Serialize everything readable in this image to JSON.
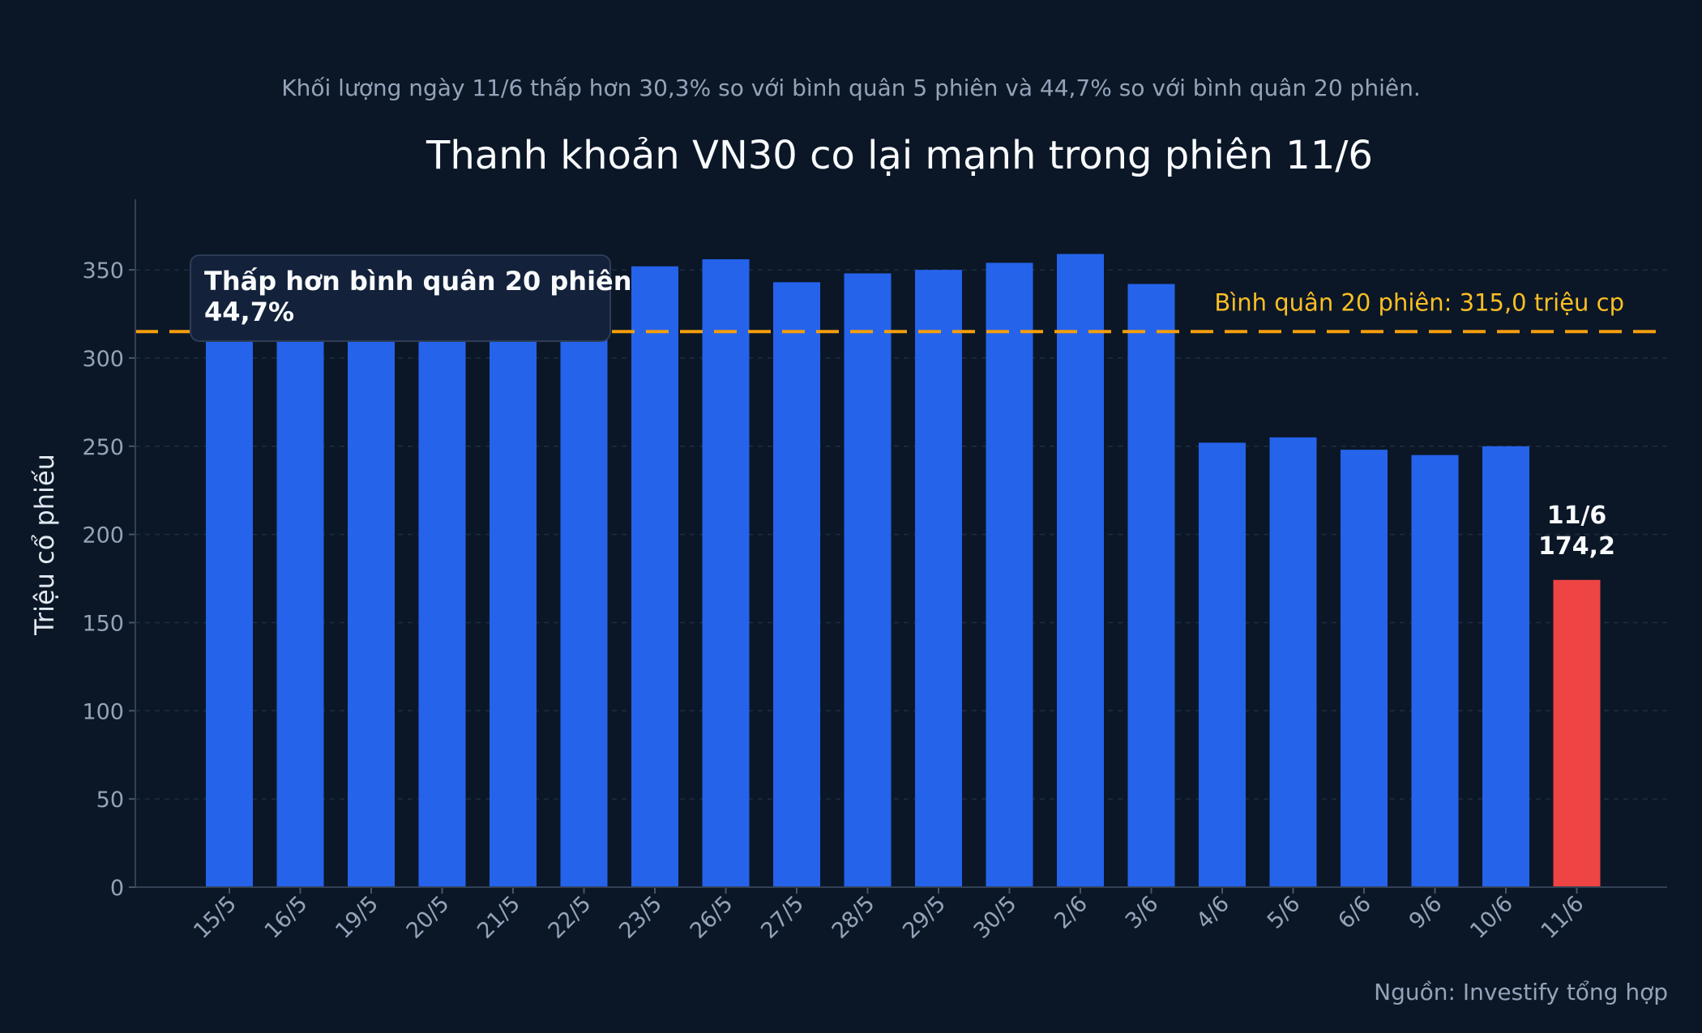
{
  "subtitle": "Khối lượng ngày 11/6 thấp hơn 30,3% so với bình quân 5 phiên và 44,7% so với bình quân 20 phiên.",
  "source": "Nguồn: Investify tổng hợp",
  "callout": {
    "line1": "Thấp hơn bình quân 20 phiên",
    "line2": "44,7%"
  },
  "colors": {
    "background": "#0b1727",
    "bar": "#2563eb",
    "highlight_bar": "#ef4444",
    "average_line": "#f59e0b",
    "average_text": "#fbbf24",
    "axis_text": "#94a3b8",
    "grid": "#1e2d42"
  },
  "chart_data": {
    "type": "bar",
    "title": "Thanh khoản VN30 co lại mạnh trong phiên 11/6",
    "xlabel": "",
    "ylabel": "Triệu cổ phiếu",
    "ylim": [
      0,
      390
    ],
    "yticks": [
      0,
      50,
      100,
      150,
      200,
      250,
      300,
      350
    ],
    "grid": true,
    "categories": [
      "15/5",
      "16/5",
      "19/5",
      "20/5",
      "21/5",
      "22/5",
      "23/5",
      "26/5",
      "27/5",
      "28/5",
      "29/5",
      "30/5",
      "2/6",
      "3/6",
      "4/6",
      "5/6",
      "6/6",
      "9/6",
      "10/6",
      "11/6"
    ],
    "values": [
      315,
      315,
      315,
      315,
      315,
      315,
      352,
      356,
      343,
      348,
      350,
      354,
      359,
      342,
      252,
      255,
      248,
      245,
      250,
      174.2
    ],
    "highlight": {
      "category": "11/6",
      "label_date": "11/6",
      "label_value": "174,2"
    },
    "reference_line": {
      "value": 315.0,
      "label": "Bình quân 20 phiên: 315,0 triệu cp"
    }
  }
}
